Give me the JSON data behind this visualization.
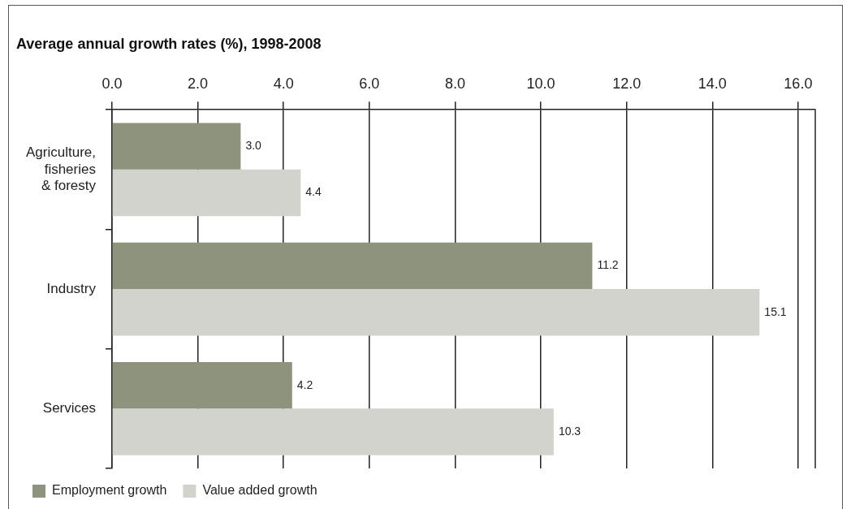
{
  "chart_data": {
    "type": "bar",
    "orientation": "horizontal",
    "title": "Average annual growth rates (%), 1998-2008",
    "categories": [
      "Agriculture,\nfisheries\n& foresty",
      "Industry",
      "Services"
    ],
    "series": [
      {
        "name": "Employment growth",
        "color": "#8e937e",
        "values": [
          3.0,
          11.2,
          4.2
        ],
        "value_labels": [
          "3.0",
          "11.2",
          "4.2"
        ]
      },
      {
        "name": "Value added growth",
        "color": "#d2d3cc",
        "values": [
          4.4,
          15.1,
          10.3
        ],
        "value_labels": [
          "4.4",
          "15.1",
          "10.3"
        ]
      }
    ],
    "xlim": [
      0,
      16.4
    ],
    "xticks": [
      {
        "value": 0,
        "label": "0.0"
      },
      {
        "value": 2,
        "label": "2.0"
      },
      {
        "value": 4,
        "label": "4.0"
      },
      {
        "value": 6,
        "label": "6.0"
      },
      {
        "value": 8,
        "label": "8.0"
      },
      {
        "value": 10,
        "label": "10.0"
      },
      {
        "value": 12,
        "label": "12.0"
      },
      {
        "value": 14,
        "label": "14.0"
      },
      {
        "value": 16,
        "label": "16.0"
      }
    ],
    "grid": "x",
    "legend": "bottom left"
  }
}
